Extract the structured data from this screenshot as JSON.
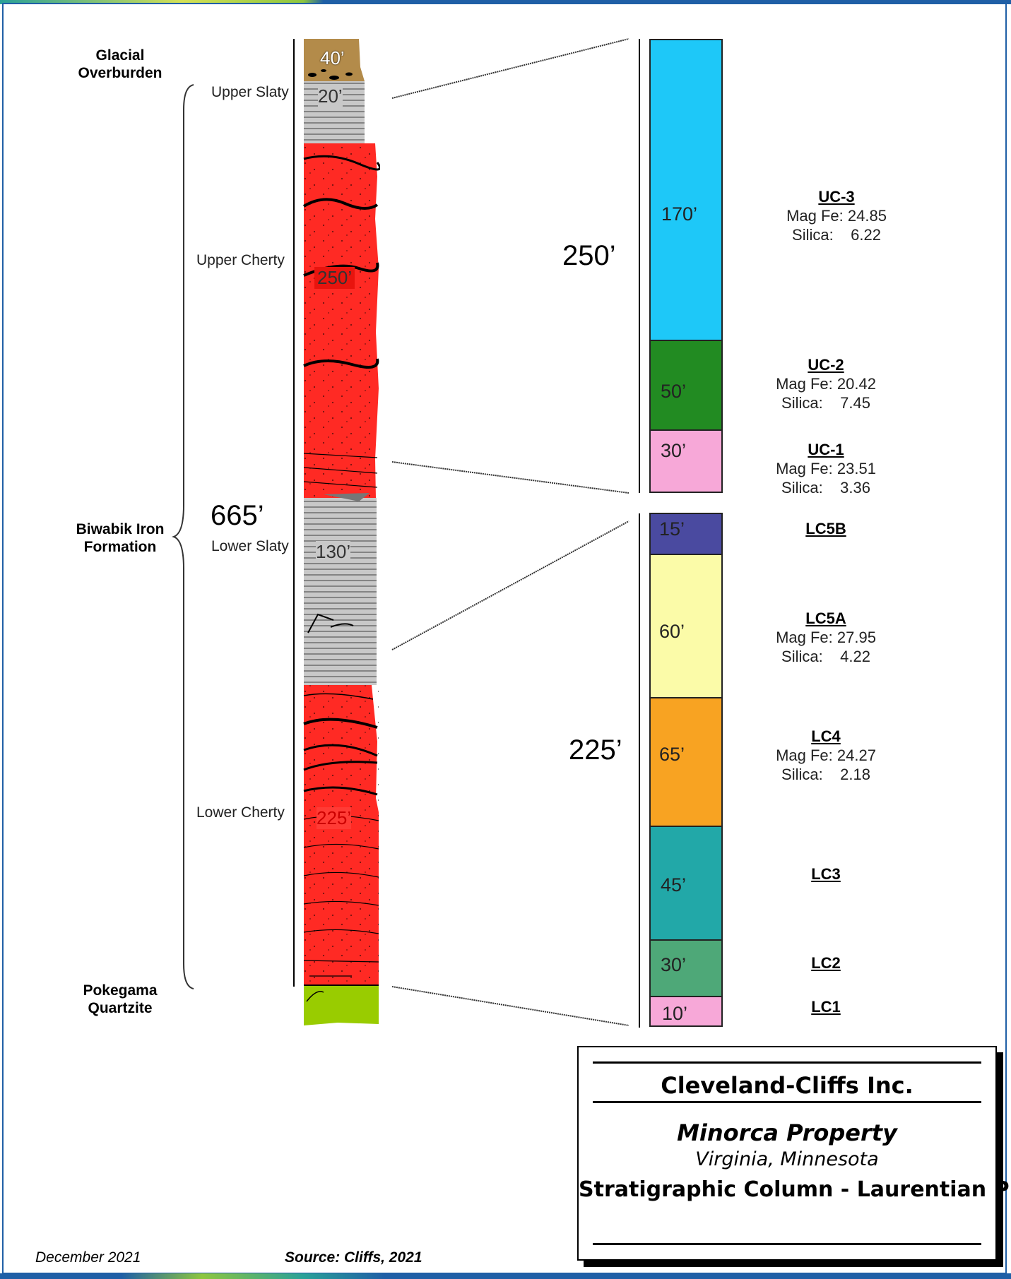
{
  "left_column": {
    "labels": {
      "glacial": "Glacial\nOverburden",
      "biwabik": "Biwabik Iron\nFormation",
      "pokegama": "Pokegama\nQuartzite",
      "upper_slaty": "Upper Slaty",
      "upper_cherty": "Upper Cherty",
      "lower_slaty": "Lower Slaty",
      "lower_cherty": "Lower Cherty",
      "total": "665’"
    },
    "thicknesses": [
      "40’",
      "20’",
      "250’",
      "130’",
      "225’"
    ],
    "colors": {
      "overburden": "#b38b4a",
      "slaty": "#c8c8c8",
      "cherty": "#ff2a24",
      "quartzite": "#99cc00"
    }
  },
  "right_column": {
    "upper_total": "250’",
    "lower_total": "225’",
    "segments": [
      {
        "thickness": "170’",
        "color": "#1ec8f8"
      },
      {
        "thickness": "50’",
        "color": "#228b22"
      },
      {
        "thickness": "30’",
        "color": "#f7a8d8"
      },
      {
        "thickness": "15’",
        "color": "#4a4aa0"
      },
      {
        "thickness": "60’",
        "color": "#fbfba8"
      },
      {
        "thickness": "65’",
        "color": "#f8a322"
      },
      {
        "thickness": "45’",
        "color": "#22a8a8"
      },
      {
        "thickness": "30’",
        "color": "#4ea878"
      },
      {
        "thickness": "10’",
        "color": "#f7a8d8"
      }
    ],
    "units": [
      {
        "code": "UC-3",
        "mag_fe": "Mag Fe: 24.85",
        "silica": "Silica:    6.22"
      },
      {
        "code": "UC-2",
        "mag_fe": "Mag Fe: 20.42",
        "silica": "Silica:    7.45"
      },
      {
        "code": "UC-1",
        "mag_fe": "Mag Fe: 23.51",
        "silica": "Silica:    3.36"
      },
      {
        "code": "LC5B"
      },
      {
        "code": "LC5A",
        "mag_fe": "Mag Fe: 27.95",
        "silica": "Silica:    4.22"
      },
      {
        "code": "LC4",
        "mag_fe": "Mag Fe: 24.27",
        "silica": "Silica:    2.18"
      },
      {
        "code": "LC3"
      },
      {
        "code": "LC2"
      },
      {
        "code": "LC1"
      }
    ]
  },
  "title_block": {
    "company": "Cleveland-Cliffs Inc.",
    "property": "Minorca Property",
    "location": "Virginia, Minnesota",
    "title": "Stratigraphic Column - Laurentian Pit"
  },
  "footer": {
    "date": "December 2021",
    "source": "Source: Cliffs, 2021"
  },
  "colors": {
    "frame": "#1f5fa6",
    "accent_green": "#8dc63f",
    "accent_teal": "#2aa198"
  }
}
